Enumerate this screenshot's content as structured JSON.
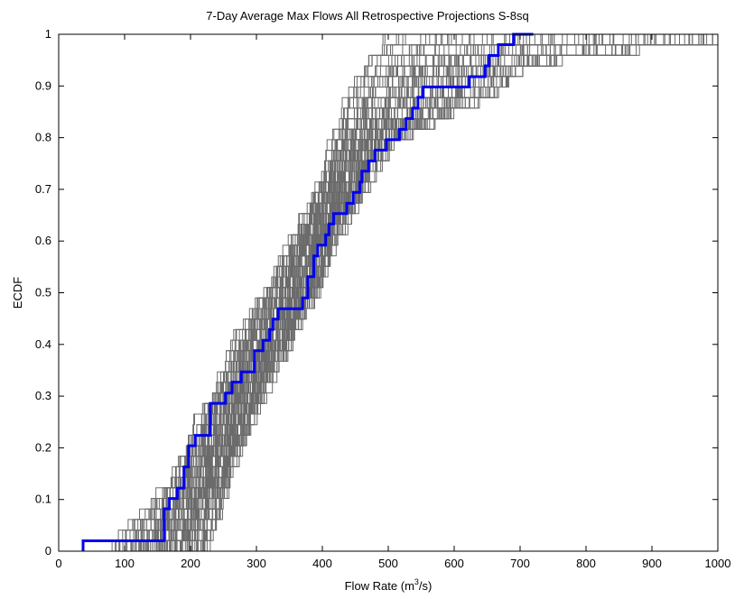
{
  "chart_data": {
    "type": "line",
    "step": true,
    "title": "7-Day Average Max Flows All Retrospective Projections S-8sq",
    "xlabel_base": "Flow Rate (m",
    "xlabel_sup": "3",
    "xlabel_tail": "/s)",
    "ylabel": "ECDF",
    "xlim": [
      0,
      1000
    ],
    "ylim": [
      0,
      1
    ],
    "xticks": [
      0,
      100,
      200,
      300,
      400,
      500,
      600,
      700,
      800,
      900,
      1000
    ],
    "yticks": [
      0,
      0.1,
      0.2,
      0.3,
      0.4,
      0.5,
      0.6,
      0.7,
      0.8,
      0.9,
      1
    ],
    "grid": false,
    "highlight_color": "#0000ee",
    "ensemble_color": "#6b6b6b",
    "ensemble_count": 100,
    "ensemble_band": {
      "p": [
        0.0,
        0.1,
        0.2,
        0.3,
        0.4,
        0.5,
        0.6,
        0.7,
        0.8,
        0.9,
        0.95,
        1.0
      ],
      "low": [
        70,
        150,
        190,
        230,
        265,
        310,
        350,
        385,
        415,
        440,
        470,
        500
      ],
      "high": [
        215,
        240,
        265,
        300,
        340,
        380,
        410,
        455,
        500,
        660,
        700,
        1000
      ]
    },
    "series": [
      {
        "role": "highlight",
        "x": [
          37,
          160,
          168,
          180,
          190,
          197,
          207,
          230,
          253,
          263,
          277,
          297,
          310,
          320,
          325,
          333,
          370,
          378,
          387,
          393,
          405,
          410,
          417,
          437,
          447,
          457,
          460,
          470,
          480,
          497,
          517,
          527,
          537,
          545,
          553,
          623,
          647,
          653,
          667,
          690,
          720
        ],
        "y": [
          0.02,
          0.082,
          0.102,
          0.122,
          0.163,
          0.204,
          0.224,
          0.286,
          0.306,
          0.327,
          0.347,
          0.388,
          0.408,
          0.429,
          0.449,
          0.469,
          0.49,
          0.531,
          0.571,
          0.592,
          0.612,
          0.633,
          0.653,
          0.673,
          0.694,
          0.714,
          0.735,
          0.755,
          0.776,
          0.796,
          0.816,
          0.837,
          0.857,
          0.878,
          0.898,
          0.918,
          0.939,
          0.959,
          0.98,
          1.0,
          1.0
        ]
      }
    ]
  }
}
